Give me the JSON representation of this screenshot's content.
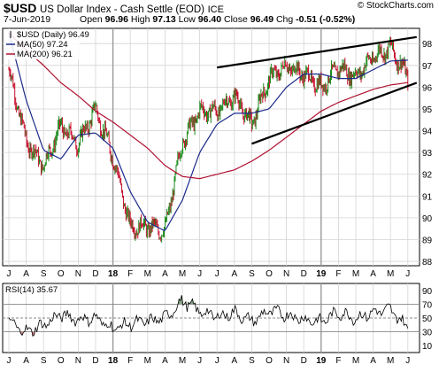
{
  "header": {
    "symbol": "$USD",
    "name": "US Dollar Index - Cash Settle (EOD)",
    "exchange": "ICE",
    "watermark": "© StockCharts.com",
    "date": "7-Jun-2019",
    "open_label": "Open",
    "open": "96.96",
    "high_label": "High",
    "high": "97.13",
    "low_label": "Low",
    "low": "96.40",
    "close_label": "Close",
    "close": "96.49",
    "chg_label": "Chg",
    "chg": "-0.51 (-0.52%)"
  },
  "legend": {
    "price": "$USD (Daily) 96.49",
    "ma50": "MA(50) 97.24",
    "ma200": "MA(200) 96.21"
  },
  "rsi_label": "RSI(14) 35.67",
  "colors": {
    "bull": "#1a8a1a",
    "bear": "#c8102e",
    "ma50": "#1c2a8c",
    "ma200": "#b01030",
    "grid": "#d4d4d4",
    "rsi": "#000000",
    "rsi_low_fill": "#d07a7a",
    "rsi_high_fill": "#7a9a7a"
  },
  "chart_data": [
    {
      "type": "line",
      "title": "$USD (Daily)",
      "x_axis": {
        "months": [
          "J",
          "A",
          "S",
          "O",
          "N",
          "D",
          "18",
          "F",
          "M",
          "A",
          "M",
          "J",
          "J",
          "A",
          "S",
          "O",
          "N",
          "D",
          "19",
          "F",
          "M",
          "A",
          "M",
          "J"
        ],
        "start": "2017-07",
        "end": "2019-06-07"
      },
      "ylim": [
        87.8,
        98.7
      ],
      "y_ticks": [
        88,
        89,
        90,
        91,
        92,
        93,
        94,
        95,
        96,
        97,
        98
      ],
      "grid": true,
      "series": [
        {
          "name": "$USD (Daily)",
          "x": [
            "2017-07",
            "2017-08",
            "2017-09",
            "2017-10",
            "2017-11",
            "2017-12",
            "2018-01",
            "2018-02",
            "2018-03",
            "2018-04",
            "2018-05",
            "2018-06",
            "2018-07",
            "2018-08",
            "2018-09",
            "2018-10",
            "2018-11",
            "2018-12",
            "2019-01",
            "2019-02",
            "2019-03",
            "2019-04",
            "2019-05",
            "2019-06"
          ],
          "values": [
            96.8,
            93.5,
            92.4,
            94.2,
            93.4,
            95.0,
            92.8,
            89.6,
            89.6,
            89.4,
            93.5,
            94.9,
            94.9,
            95.6,
            94.3,
            96.4,
            97.0,
            96.6,
            96.0,
            96.9,
            96.5,
            97.4,
            97.8,
            96.49
          ]
        },
        {
          "name": "MA(50)",
          "x": [
            "2017-07",
            "2017-08",
            "2017-09",
            "2017-10",
            "2017-11",
            "2017-12",
            "2018-01",
            "2018-02",
            "2018-03",
            "2018-04",
            "2018-05",
            "2018-06",
            "2018-07",
            "2018-08",
            "2018-09",
            "2018-10",
            "2018-11",
            "2018-12",
            "2019-01",
            "2019-02",
            "2019-03",
            "2019-04",
            "2019-05",
            "2019-06"
          ],
          "values": [
            98.5,
            95.4,
            93.1,
            92.7,
            93.8,
            93.9,
            93.2,
            91.2,
            89.8,
            89.4,
            90.8,
            93.0,
            94.3,
            94.8,
            94.8,
            95.0,
            96.0,
            96.6,
            96.6,
            96.4,
            96.4,
            96.8,
            97.2,
            97.24
          ]
        },
        {
          "name": "MA(200)",
          "x": [
            "2017-07",
            "2017-08",
            "2017-09",
            "2017-10",
            "2017-11",
            "2017-12",
            "2018-01",
            "2018-02",
            "2018-03",
            "2018-04",
            "2018-05",
            "2018-06",
            "2018-07",
            "2018-08",
            "2018-09",
            "2018-10",
            "2018-11",
            "2018-12",
            "2019-01",
            "2019-02",
            "2019-03",
            "2019-04",
            "2019-05",
            "2019-06"
          ],
          "values": [
            98.5,
            97.7,
            97.0,
            96.2,
            95.6,
            94.9,
            94.4,
            93.8,
            93.2,
            92.4,
            91.9,
            91.8,
            92.0,
            92.2,
            92.6,
            93.1,
            93.7,
            94.3,
            94.9,
            95.3,
            95.6,
            95.9,
            96.1,
            96.21
          ]
        }
      ],
      "trendlines": [
        {
          "name": "upper",
          "from": [
            "2018-07",
            96.9
          ],
          "to": [
            "2019-06",
            98.3
          ]
        },
        {
          "name": "lower",
          "from": [
            "2018-09",
            93.4
          ],
          "to": [
            "2019-06",
            96.2
          ]
        }
      ]
    },
    {
      "type": "line",
      "title": "RSI(14)",
      "ylim": [
        0,
        100
      ],
      "y_ticks": [
        10,
        30,
        50,
        70,
        90
      ],
      "reference_lines": [
        30,
        50,
        70
      ],
      "series": [
        {
          "name": "RSI(14)",
          "x": [
            "2017-07",
            "2017-08",
            "2017-09",
            "2017-10",
            "2017-11",
            "2017-12",
            "2018-01",
            "2018-02",
            "2018-03",
            "2018-04",
            "2018-05",
            "2018-06",
            "2018-07",
            "2018-08",
            "2018-09",
            "2018-10",
            "2018-11",
            "2018-12",
            "2019-01",
            "2019-02",
            "2019-03",
            "2019-04",
            "2019-05",
            "2019-06"
          ],
          "values": [
            45,
            30,
            40,
            55,
            48,
            50,
            35,
            42,
            45,
            50,
            75,
            60,
            52,
            58,
            45,
            60,
            55,
            48,
            45,
            58,
            50,
            58,
            62,
            35.67
          ]
        }
      ]
    }
  ]
}
